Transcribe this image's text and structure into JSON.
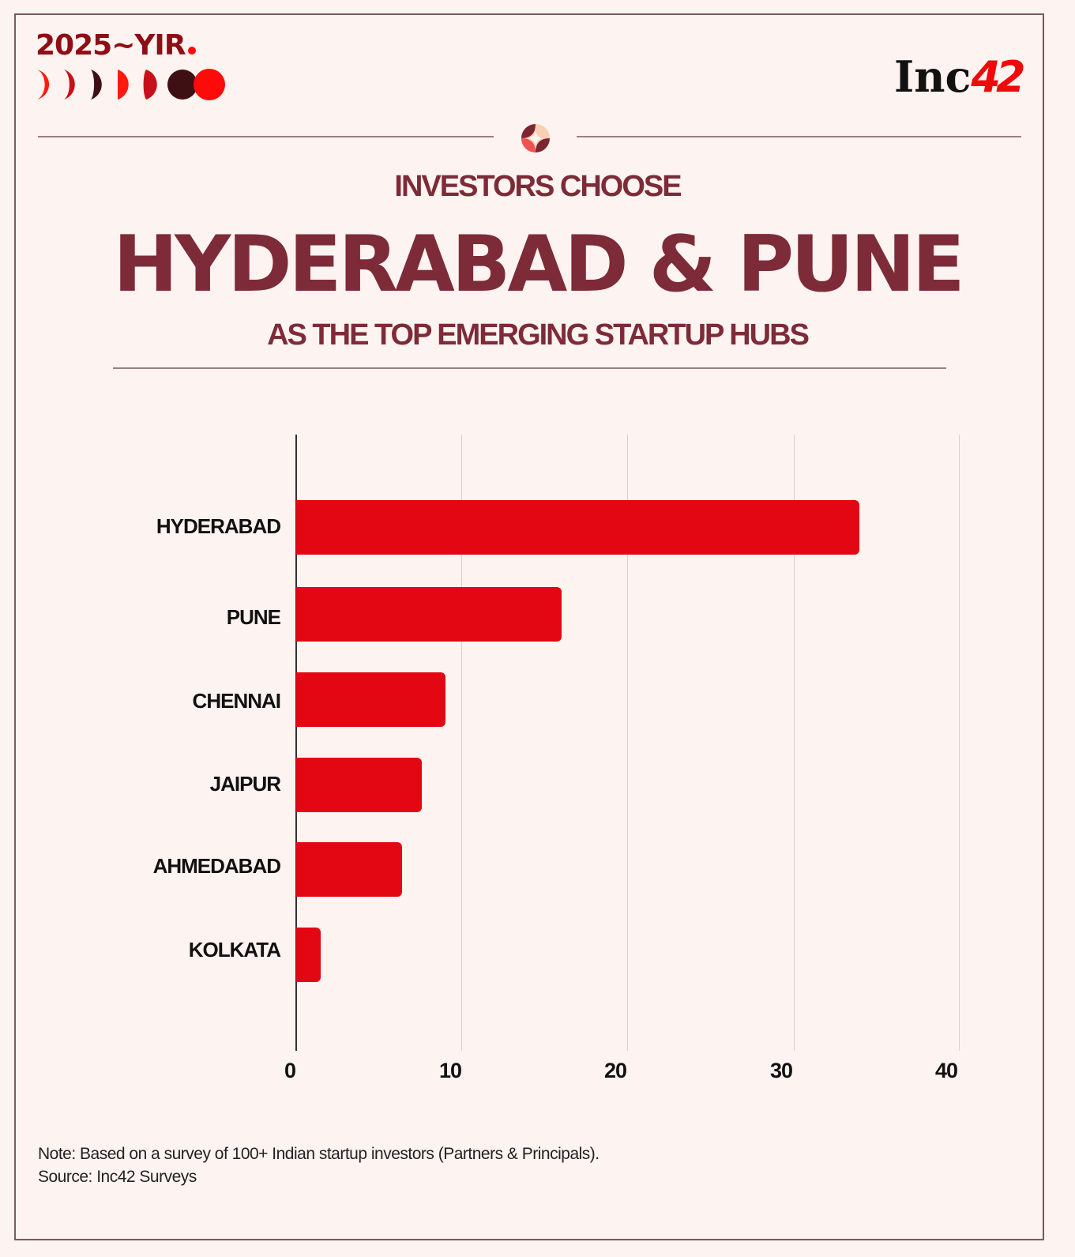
{
  "brand": {
    "yir_label": "2025~YIR",
    "logo_text": "Inc",
    "logo_number": "42",
    "colors": {
      "background": "#fdf3f0",
      "title": "#7d2b38",
      "bar": "#e30613",
      "yir": "#8e0e16",
      "logo_accent": "#ef0a0a"
    }
  },
  "header": {
    "kicker": "INVESTORS CHOOSE",
    "title": "HYDERABAD & PUNE",
    "subtitle": "AS THE TOP EMERGING STARTUP HUBS"
  },
  "chart_data": {
    "type": "bar",
    "orientation": "horizontal",
    "title": "INVESTORS CHOOSE HYDERABAD & PUNE AS THE TOP EMERGING STARTUP HUBS",
    "categories": [
      "HYDERABAD",
      "PUNE",
      "CHENNAI",
      "JAIPUR",
      "AHMEDABAD",
      "KOLKATA"
    ],
    "values": [
      34,
      16,
      9,
      7.6,
      6.4,
      1.5
    ],
    "xlabel": "",
    "ylabel": "",
    "xlim": [
      0,
      40
    ],
    "xticks": [
      "0",
      "10",
      "20",
      "30",
      "40"
    ],
    "grid": true,
    "legend": "none"
  },
  "footer": {
    "note": "Note: Based on a survey of 100+ Indian startup investors (Partners & Principals).",
    "source": "Source: Inc42 Surveys"
  }
}
